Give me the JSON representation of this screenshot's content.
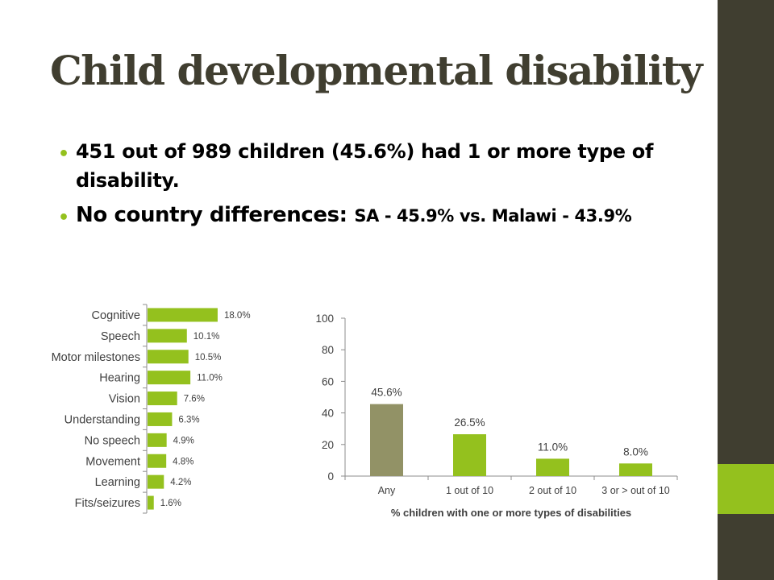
{
  "title": "Child developmental disability",
  "bullets": {
    "b1": "451 out of 989 children (45.6%) had 1 or more type of disability.",
    "b2_lead": "No country differences: ",
    "b2_detail": "SA - 45.9% vs. Malawi - 43.9%"
  },
  "colors": {
    "dark": "#403e30",
    "green": "#94c11e",
    "olive": "#929266"
  },
  "chart_data": [
    {
      "type": "bar",
      "orientation": "horizontal",
      "categories": [
        "Cognitive",
        "Speech",
        "Motor milestones",
        "Hearing",
        "Vision",
        "Understanding",
        "No speech",
        "Movement",
        "Learning",
        "Fits/seizures"
      ],
      "values": [
        18.0,
        10.1,
        10.5,
        11.0,
        7.6,
        6.3,
        4.9,
        4.8,
        4.2,
        1.6
      ],
      "data_labels": [
        "18.0%",
        "10.1%",
        "10.5%",
        "11.0%",
        "7.6%",
        "6.3%",
        "4.9%",
        "4.8%",
        "4.2%",
        "1.6%"
      ],
      "xlim": [
        0,
        30
      ],
      "grid": false,
      "color": "#94c11e"
    },
    {
      "type": "bar",
      "categories": [
        "Any",
        "1 out of 10",
        "2 out of 10",
        "3 or > out of 10"
      ],
      "values": [
        45.6,
        26.5,
        11.0,
        8.0
      ],
      "data_labels": [
        "45.6%",
        "26.5%",
        "11.0%",
        "8.0%"
      ],
      "colors": [
        "#929266",
        "#94c11e",
        "#94c11e",
        "#94c11e"
      ],
      "ylim": [
        0,
        100
      ],
      "yticks": [
        "0",
        "20",
        "40",
        "60",
        "80",
        "100"
      ],
      "xlabel": "% children with one or more types of disabilities",
      "grid": false
    }
  ]
}
